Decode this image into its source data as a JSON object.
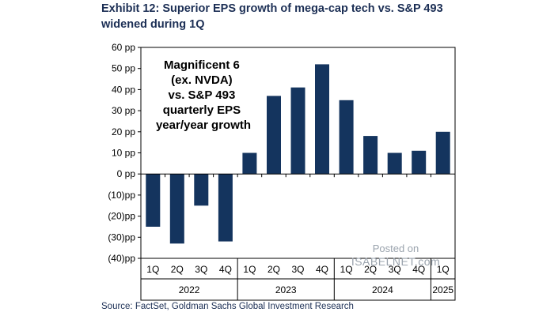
{
  "page": {
    "title": "Exhibit 12: Superior EPS growth of mega-cap tech vs. S&P 493 widened during 1Q",
    "source": "Source: FactSet, Goldman Sachs Global Investment Research",
    "watermark_top": "Posted on",
    "watermark_bottom": "ISABELNET.com"
  },
  "colors": {
    "bar": "#14345e",
    "text": "#1c2f55",
    "axis": "#000000"
  },
  "chart_data": {
    "type": "bar",
    "title": "Exhibit 12: Superior EPS growth of mega-cap tech vs. S&P 493 widened during 1Q",
    "annotation": [
      "Magnificent 6",
      "(ex. NVDA)",
      "vs. S&P 493",
      "quarterly EPS",
      "year/year growth"
    ],
    "categories": [
      "1Q",
      "2Q",
      "3Q",
      "4Q",
      "1Q",
      "2Q",
      "3Q",
      "4Q",
      "1Q",
      "2Q",
      "3Q",
      "4Q",
      "1Q"
    ],
    "groups": [
      {
        "label": "2022",
        "start": 0,
        "end": 3
      },
      {
        "label": "2023",
        "start": 4,
        "end": 7
      },
      {
        "label": "2024",
        "start": 8,
        "end": 11
      },
      {
        "label": "2025",
        "start": 12,
        "end": 12
      }
    ],
    "values": [
      -25,
      -33,
      -15,
      -32,
      10,
      37,
      41,
      52,
      35,
      18,
      10,
      11,
      20
    ],
    "ylim": [
      -40,
      60
    ],
    "yticks": [
      60,
      50,
      40,
      30,
      20,
      10,
      0,
      -10,
      -20,
      -30,
      -40
    ],
    "ytick_labels": [
      "60 pp",
      "50 pp",
      "40 pp",
      "30 pp",
      "20 pp",
      "10 pp",
      "0 pp",
      "(10)pp",
      "(20)pp",
      "(30)pp",
      "(40)pp"
    ],
    "xlabel": "",
    "ylabel": "",
    "grid": false,
    "legend": "none"
  }
}
